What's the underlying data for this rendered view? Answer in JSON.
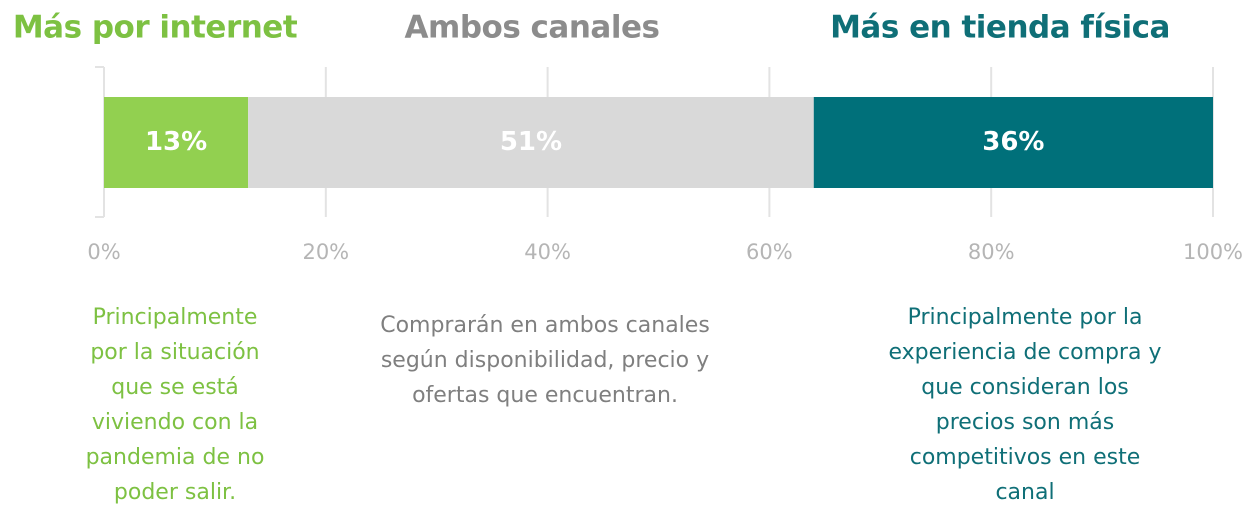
{
  "chart_data": {
    "type": "stacked_bar_horizontal",
    "xlim": [
      0,
      100
    ],
    "xticks": [
      {
        "value": 0,
        "label": "0%"
      },
      {
        "value": 20,
        "label": "20%"
      },
      {
        "value": 40,
        "label": "40%"
      },
      {
        "value": 60,
        "label": "60%"
      },
      {
        "value": 80,
        "label": "80%"
      },
      {
        "value": 100,
        "label": "100%"
      }
    ],
    "grid": true,
    "series": [
      {
        "name": "Más por internet",
        "color": "#92d050",
        "header_color": "#7dc142",
        "values": [
          13
        ],
        "value_labels": [
          "13%"
        ],
        "description": [
          "Principalmente",
          "por la situación",
          "que se está",
          "viviendo con la",
          "pandemia de no",
          "poder salir."
        ]
      },
      {
        "name": "Ambos canales",
        "color": "#d9d9d9",
        "header_color": "#8c8c8c",
        "values": [
          51
        ],
        "value_labels": [
          "51%"
        ],
        "description": [
          "Comprarán en ambos canales",
          "según disponibilidad, precio y",
          "ofertas que encuentran."
        ]
      },
      {
        "name": "Más en tienda física",
        "color": "#00707a",
        "header_color": "#0f6f77",
        "values": [
          36
        ],
        "value_labels": [
          "36%"
        ],
        "description": [
          "Principalmente por la",
          "experiencia de compra y",
          "que consideran los",
          "precios son más",
          "competitivos en este",
          "canal"
        ]
      }
    ]
  }
}
